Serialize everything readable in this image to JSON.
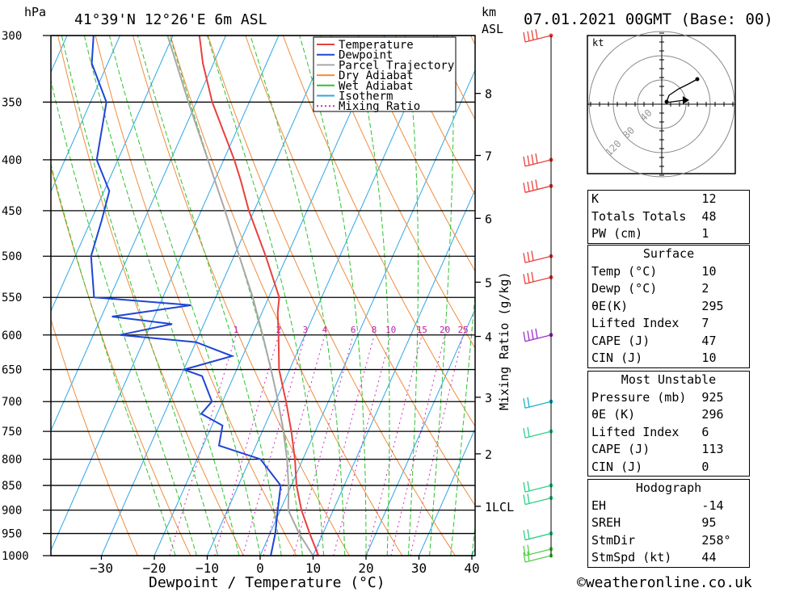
{
  "header": {
    "pressure_unit": "hPa",
    "location": "41°39'N  12°26'E  6m  ASL",
    "height_unit": "km",
    "height_unit2": "ASL",
    "date": "07.01.2021  00GMT  (Base: 00)"
  },
  "footer": {
    "xlabel": "Dewpoint / Temperature (°C)",
    "credit": "©weatheronline.co.uk",
    "mixing_ratio_label": "Mixing Ratio (g/kg)"
  },
  "legend": [
    {
      "name": "Temperature",
      "color": "#e8413c"
    },
    {
      "name": "Dewpoint",
      "color": "#1f45d6"
    },
    {
      "name": "Parcel Trajectory",
      "color": "#a8a8a8"
    },
    {
      "name": "Dry Adiabat",
      "color": "#f08c3c"
    },
    {
      "name": "Wet Adiabat",
      "color": "#2fc22f"
    },
    {
      "name": "Isotherm",
      "color": "#2ea6e6"
    },
    {
      "name": "Mixing Ratio",
      "color": "#d12ab8"
    }
  ],
  "chart_data": {
    "type": "line",
    "title": "41°39'N  12°26'E  6m  ASL",
    "xlabel": "Dewpoint / Temperature (°C)",
    "ylabel": "hPa",
    "xlim": [
      -40,
      40
    ],
    "ylim": [
      1000,
      300
    ],
    "y_scale": "log",
    "x_ticks": [
      -30,
      -20,
      -10,
      0,
      10,
      20,
      30,
      40
    ],
    "pressure_levels": [
      300,
      350,
      400,
      450,
      500,
      550,
      600,
      650,
      700,
      750,
      800,
      850,
      900,
      950,
      1000
    ],
    "km_labels": [
      {
        "label": "8",
        "p": 343
      },
      {
        "label": "7",
        "p": 396
      },
      {
        "label": "6",
        "p": 458
      },
      {
        "label": "5",
        "p": 531
      },
      {
        "label": "4",
        "p": 602
      },
      {
        "label": "3",
        "p": 693
      },
      {
        "label": "2",
        "p": 790
      },
      {
        "label": "1LCL",
        "p": 892
      }
    ],
    "mixing_ratio_labels": [
      "1",
      "2",
      "3",
      "4",
      "6",
      "8",
      "10",
      "15",
      "20",
      "25"
    ],
    "series": [
      {
        "name": "Temperature",
        "points": [
          {
            "p": 1000,
            "t": 11
          },
          {
            "p": 950,
            "t": 7.5
          },
          {
            "p": 900,
            "t": 4
          },
          {
            "p": 850,
            "t": 1
          },
          {
            "p": 800,
            "t": -1.5
          },
          {
            "p": 750,
            "t": -4.5
          },
          {
            "p": 700,
            "t": -8
          },
          {
            "p": 650,
            "t": -12
          },
          {
            "p": 600,
            "t": -15
          },
          {
            "p": 570,
            "t": -17
          },
          {
            "p": 550,
            "t": -18
          },
          {
            "p": 500,
            "t": -24
          },
          {
            "p": 450,
            "t": -31
          },
          {
            "p": 420,
            "t": -35
          },
          {
            "p": 400,
            "t": -38
          },
          {
            "p": 350,
            "t": -47
          },
          {
            "p": 320,
            "t": -52
          },
          {
            "p": 300,
            "t": -55
          }
        ]
      },
      {
        "name": "Dewpoint",
        "points": [
          {
            "p": 1000,
            "t": 2
          },
          {
            "p": 950,
            "t": 1
          },
          {
            "p": 900,
            "t": -0.5
          },
          {
            "p": 850,
            "t": -2
          },
          {
            "p": 800,
            "t": -8
          },
          {
            "p": 775,
            "t": -17
          },
          {
            "p": 740,
            "t": -18
          },
          {
            "p": 720,
            "t": -23
          },
          {
            "p": 700,
            "t": -22
          },
          {
            "p": 660,
            "t": -26
          },
          {
            "p": 650,
            "t": -30
          },
          {
            "p": 630,
            "t": -22
          },
          {
            "p": 610,
            "t": -30
          },
          {
            "p": 600,
            "t": -45
          },
          {
            "p": 585,
            "t": -36
          },
          {
            "p": 575,
            "t": -48
          },
          {
            "p": 560,
            "t": -34
          },
          {
            "p": 550,
            "t": -53
          },
          {
            "p": 500,
            "t": -57
          },
          {
            "p": 460,
            "t": -58
          },
          {
            "p": 430,
            "t": -59
          },
          {
            "p": 400,
            "t": -64
          },
          {
            "p": 350,
            "t": -67
          },
          {
            "p": 320,
            "t": -73
          },
          {
            "p": 300,
            "t": -75
          }
        ]
      },
      {
        "name": "Parcel Trajectory",
        "points": [
          {
            "p": 1000,
            "t": 10
          },
          {
            "p": 950,
            "t": 5.5
          },
          {
            "p": 900,
            "t": 1.5
          },
          {
            "p": 850,
            "t": -0.5
          },
          {
            "p": 800,
            "t": -3
          },
          {
            "p": 750,
            "t": -6
          },
          {
            "p": 700,
            "t": -9.5
          },
          {
            "p": 650,
            "t": -13.5
          },
          {
            "p": 600,
            "t": -18
          },
          {
            "p": 550,
            "t": -23
          },
          {
            "p": 500,
            "t": -29
          },
          {
            "p": 450,
            "t": -35.5
          },
          {
            "p": 400,
            "t": -43
          },
          {
            "p": 350,
            "t": -51.5
          },
          {
            "p": 300,
            "t": -61
          }
        ]
      }
    ]
  },
  "winds": [
    {
      "p": 300,
      "color": "#e8413c",
      "flags": 4
    },
    {
      "p": 400,
      "color": "#e8413c",
      "flags": 4
    },
    {
      "p": 425,
      "color": "#e8413c",
      "flags": 4
    },
    {
      "p": 500,
      "color": "#e8413c",
      "flags": 3
    },
    {
      "p": 525,
      "color": "#e8413c",
      "flags": 3
    },
    {
      "p": 600,
      "color": "#9b30c9",
      "flags": 4
    },
    {
      "p": 700,
      "color": "#1ab1c9",
      "flags": 2
    },
    {
      "p": 750,
      "color": "#2fcf88",
      "flags": 2
    },
    {
      "p": 850,
      "color": "#2fcf88",
      "flags": 2
    },
    {
      "p": 875,
      "color": "#2fcf88",
      "flags": 2
    },
    {
      "p": 950,
      "color": "#2fcf88",
      "flags": 2
    },
    {
      "p": 985,
      "color": "#55d04a",
      "flags": 2
    },
    {
      "p": 1000,
      "color": "#55d04a",
      "flags": 2
    }
  ],
  "hodograph": {
    "unit": "kt",
    "rings": [
      "40",
      "80",
      "120"
    ]
  },
  "indices": {
    "top": [
      {
        "k": "K",
        "v": "12"
      },
      {
        "k": "Totals Totals",
        "v": "48"
      },
      {
        "k": "PW (cm)",
        "v": "1"
      }
    ],
    "surface_title": "Surface",
    "surface": [
      {
        "k": "Temp (°C)",
        "v": "10"
      },
      {
        "k": "Dewp (°C)",
        "v": "2"
      },
      {
        "k": "θE(K)",
        "v": "295"
      },
      {
        "k": "Lifted Index",
        "v": "7"
      },
      {
        "k": "CAPE (J)",
        "v": "47"
      },
      {
        "k": "CIN (J)",
        "v": "10"
      }
    ],
    "mu_title": "Most Unstable",
    "mu": [
      {
        "k": "Pressure (mb)",
        "v": "925"
      },
      {
        "k": "θE (K)",
        "v": "296"
      },
      {
        "k": "Lifted Index",
        "v": "6"
      },
      {
        "k": "CAPE (J)",
        "v": "113"
      },
      {
        "k": "CIN (J)",
        "v": "0"
      }
    ],
    "hodo_title": "Hodograph",
    "hodo": [
      {
        "k": "EH",
        "v": "-14"
      },
      {
        "k": "SREH",
        "v": "95"
      },
      {
        "k": "StmDir",
        "v": "258°"
      },
      {
        "k": "StmSpd (kt)",
        "v": "44"
      }
    ]
  }
}
